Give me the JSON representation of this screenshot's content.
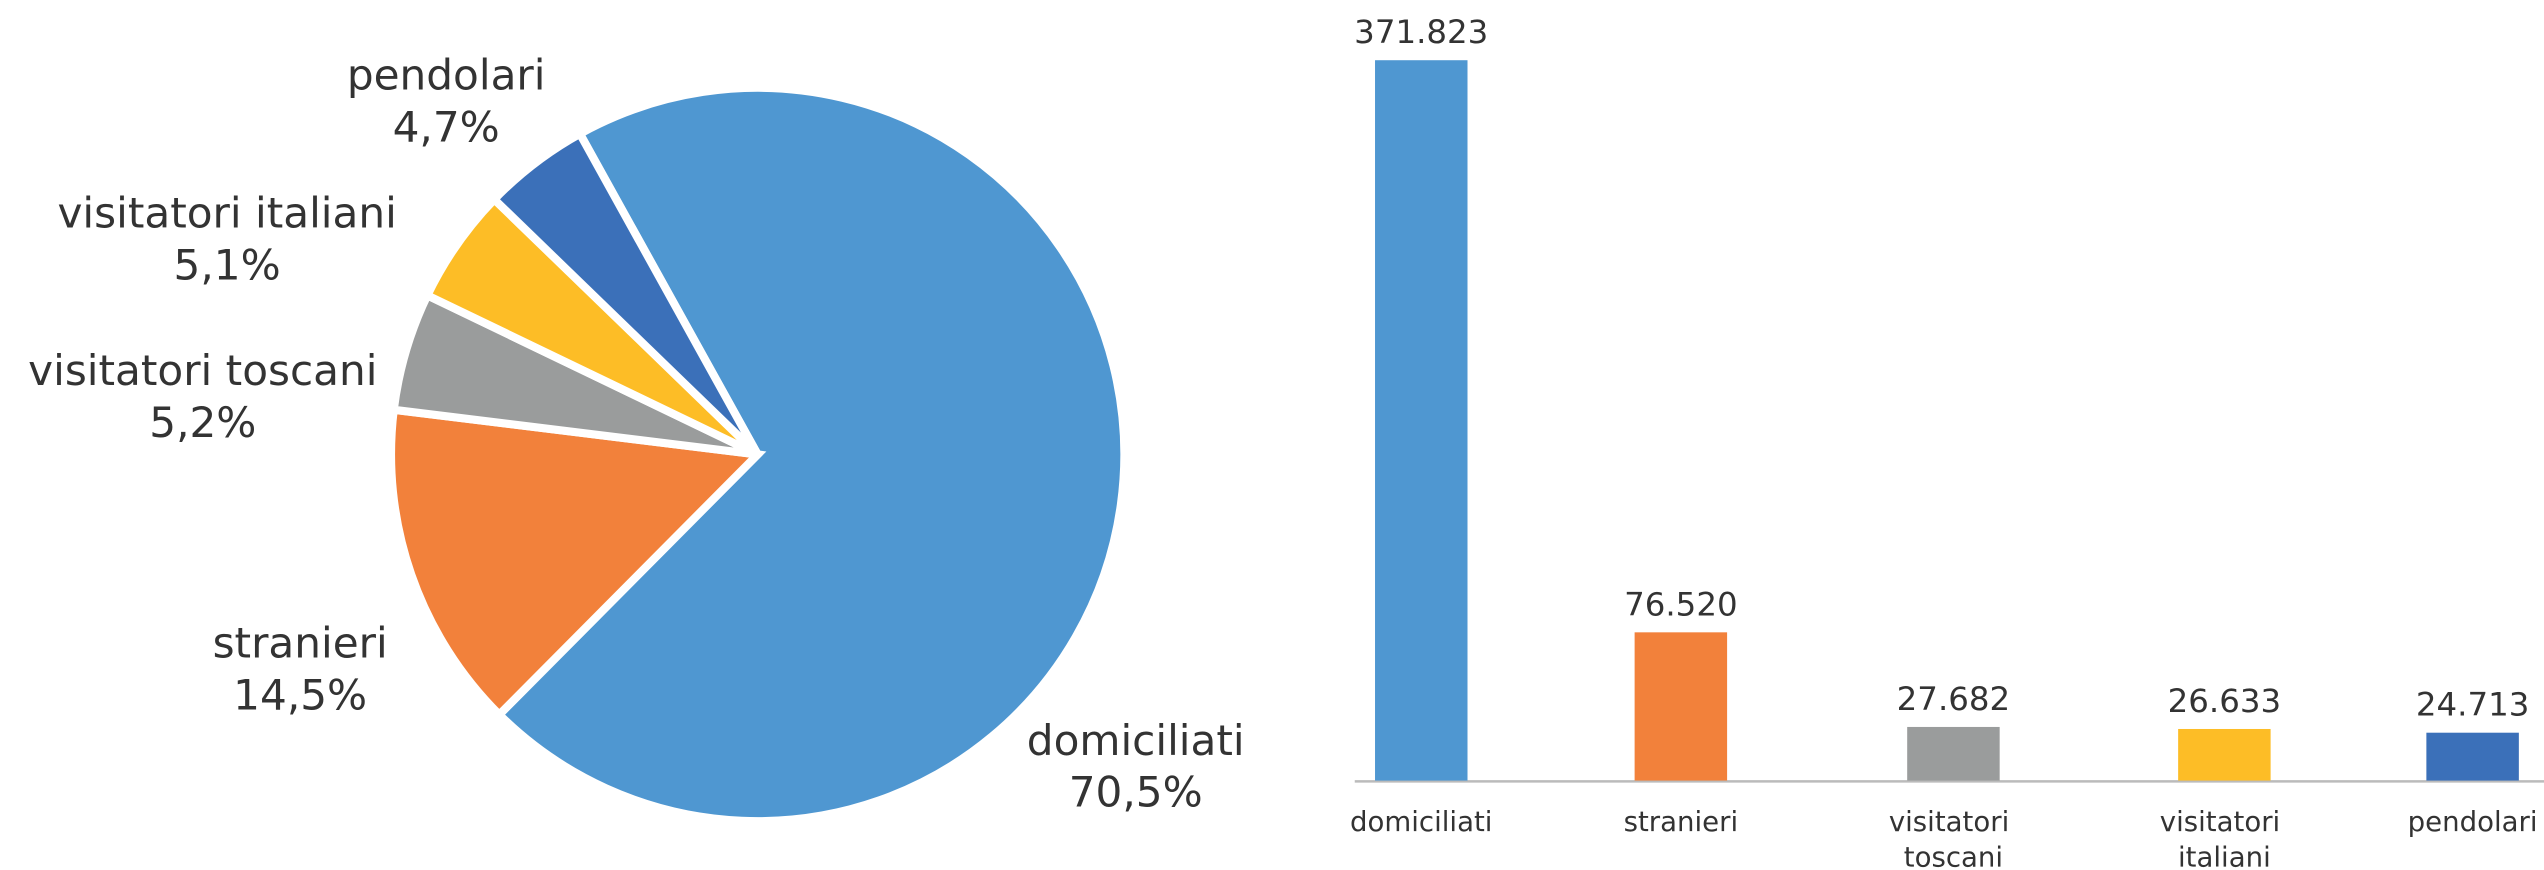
{
  "chart_data": [
    {
      "type": "pie",
      "categories": [
        "domiciliati",
        "stranieri",
        "visitatori toscani",
        "visitatori italiani",
        "pendolari"
      ],
      "values": [
        70.5,
        14.5,
        5.2,
        5.1,
        4.7
      ],
      "value_labels": [
        "70,5%",
        "14,5%",
        "5,2%",
        "5,1%",
        "4,7%"
      ],
      "colors": [
        "#4f97d1",
        "#f2813b",
        "#9a9c9c",
        "#fdbd26",
        "#3b70b9"
      ]
    },
    {
      "type": "bar",
      "categories": [
        "domiciliati",
        "stranieri",
        "visitatori toscani",
        "visitatori italiani",
        "pendolari"
      ],
      "values": [
        371823,
        76520,
        27682,
        26633,
        24713
      ],
      "value_labels": [
        "371.823",
        "76.520",
        "27.682",
        "26.633",
        "24.713"
      ],
      "colors": [
        "#4f97d1",
        "#f2813b",
        "#9a9c9c",
        "#fdbd26",
        "#3b70b9"
      ]
    }
  ]
}
